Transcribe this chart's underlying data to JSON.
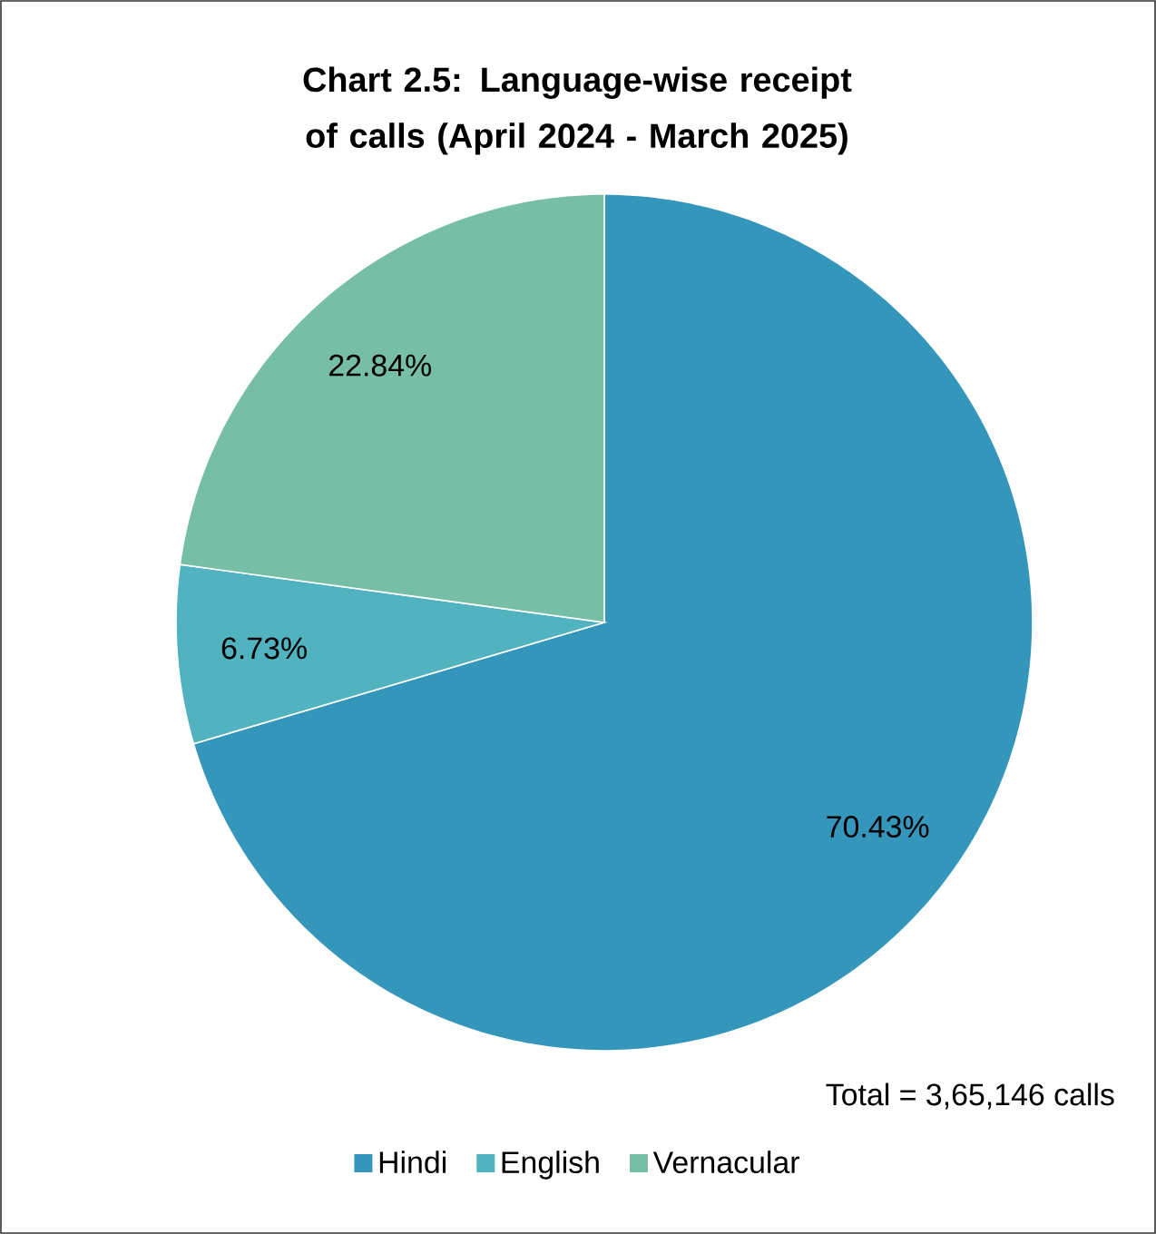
{
  "chart_data": {
    "type": "pie",
    "title": "Chart 2.5: Language-wise receipt of calls (April 2024 - March 2025)",
    "categories": [
      "Hindi",
      "English",
      "Vernacular"
    ],
    "values": [
      70.43,
      6.73,
      22.84
    ],
    "value_labels": [
      "70.43%",
      "6.73%",
      "22.84%"
    ],
    "colors": [
      "#3596bc",
      "#52b3c0",
      "#76bea6"
    ],
    "legend": "bottom",
    "annotations": [
      "Total = 3,65,146 calls"
    ]
  }
}
